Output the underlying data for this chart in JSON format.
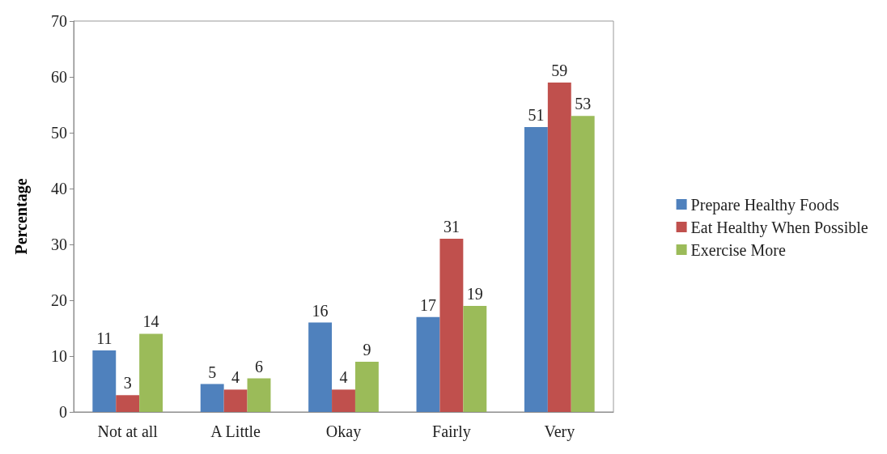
{
  "chart_data": {
    "type": "bar",
    "ylabel": "Percentage",
    "categories": [
      "Not at all",
      "A Little",
      "Okay",
      "Fairly",
      "Very"
    ],
    "series": [
      {
        "name": "Prepare Healthy Foods",
        "color": "#4f81bd",
        "values": [
          11,
          5,
          16,
          17,
          51
        ]
      },
      {
        "name": "Eat Healthy When Possible",
        "color": "#c0504d",
        "values": [
          3,
          4,
          4,
          31,
          59
        ]
      },
      {
        "name": "Exercise More",
        "color": "#9bbb59",
        "values": [
          14,
          6,
          9,
          19,
          53
        ]
      }
    ],
    "ylim": [
      0,
      70
    ],
    "yticks": [
      0,
      10,
      20,
      30,
      40,
      50,
      60,
      70
    ],
    "data_labels": true,
    "legend": "right",
    "grid": false
  }
}
